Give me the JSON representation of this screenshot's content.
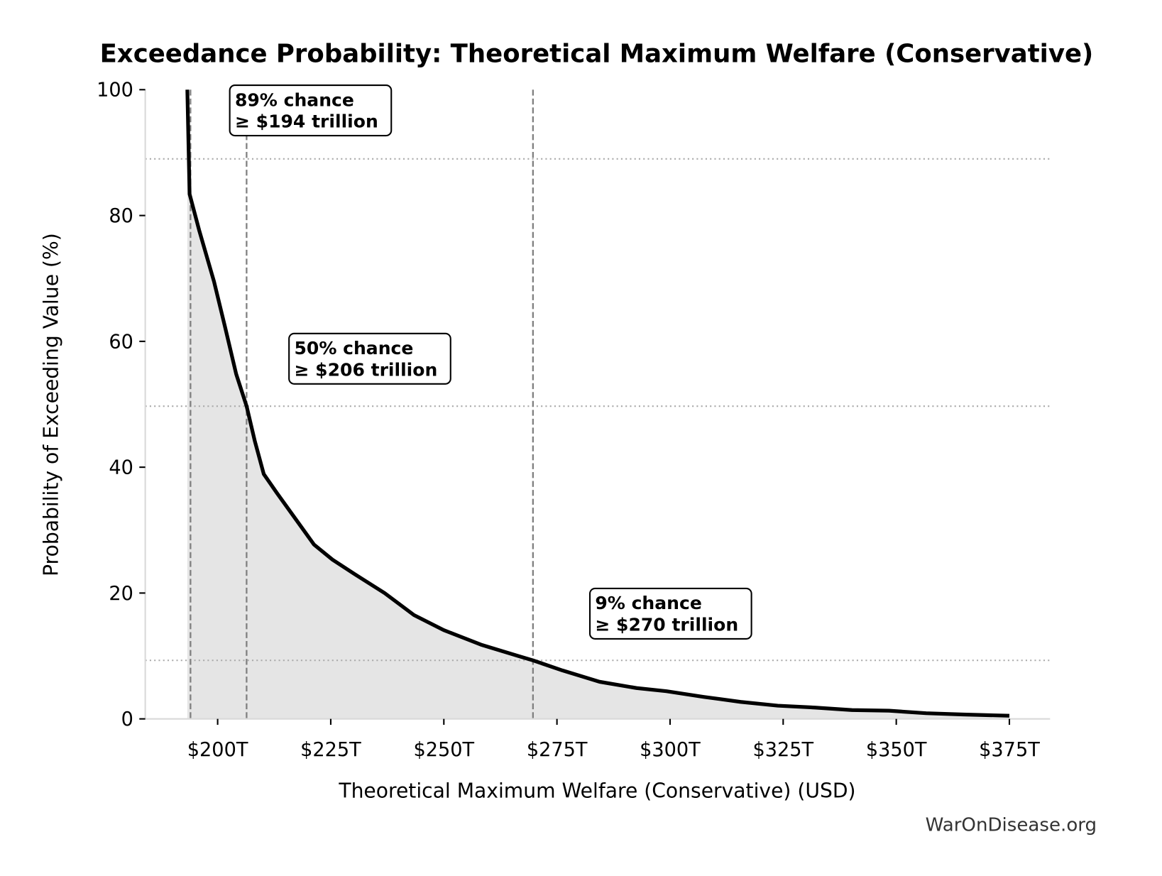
{
  "chart_data": {
    "type": "area",
    "title": "Exceedance Probability: Theoretical Maximum Welfare (Conservative)",
    "xlabel": "Theoretical Maximum Welfare (Conservative) (USD)",
    "ylabel": "Probability of Exceeding Value (%)",
    "xlim": [
      184,
      384
    ],
    "ylim": [
      0,
      100
    ],
    "x_unit": "trillion USD",
    "x_ticks": [
      200,
      225,
      250,
      275,
      300,
      325,
      350,
      375
    ],
    "x_tick_labels": [
      "$200T",
      "$225T",
      "$250T",
      "$275T",
      "$300T",
      "$325T",
      "$350T",
      "$375T"
    ],
    "y_ticks": [
      0,
      20,
      40,
      60,
      80,
      100
    ],
    "y_tick_labels": [
      "0",
      "20",
      "40",
      "60",
      "80",
      "100"
    ],
    "grid": false,
    "colors": {
      "line": "#000000",
      "fill": "#e5e5e5",
      "reference": "#808080",
      "hline": "#aaaaaa"
    },
    "series": [
      {
        "x": [
          193.3,
          193.6,
          193.8,
          195.9,
          199.2,
          201.6,
          204.1,
          206.4,
          208.2,
          210.2,
          213.1,
          217.2,
          221.3,
          225.4,
          230.3,
          236.9,
          243.4,
          250,
          258.2,
          266.4,
          269.7,
          276.2,
          284.4,
          292.6,
          299.2,
          307.4,
          315.6,
          323.8,
          332,
          340.2,
          348.4,
          356.6,
          364.8,
          375
        ],
        "y": [
          100,
          90,
          83.4,
          77.7,
          69.5,
          62.4,
          54.8,
          49.7,
          44.2,
          38.9,
          35.9,
          31.8,
          27.7,
          25.3,
          23.0,
          20.0,
          16.5,
          14.1,
          11.8,
          10.0,
          9.3,
          7.7,
          5.9,
          4.9,
          4.4,
          3.5,
          2.7,
          2.1,
          1.8,
          1.4,
          1.3,
          0.9,
          0.7,
          0.5
        ]
      }
    ],
    "reference_lines": [
      {
        "x": 194,
        "y": 89,
        "label_line1": "89% chance",
        "label_line2": "≥ $194 trillion"
      },
      {
        "x": 206.4,
        "y": 49.7,
        "label_line1": "50% chance",
        "label_line2": "≥ $206 trillion"
      },
      {
        "x": 269.7,
        "y": 9.3,
        "label_line1": "9% chance",
        "label_line2": "≥ $270 trillion"
      }
    ]
  },
  "watermark": "WarOnDisease.org"
}
